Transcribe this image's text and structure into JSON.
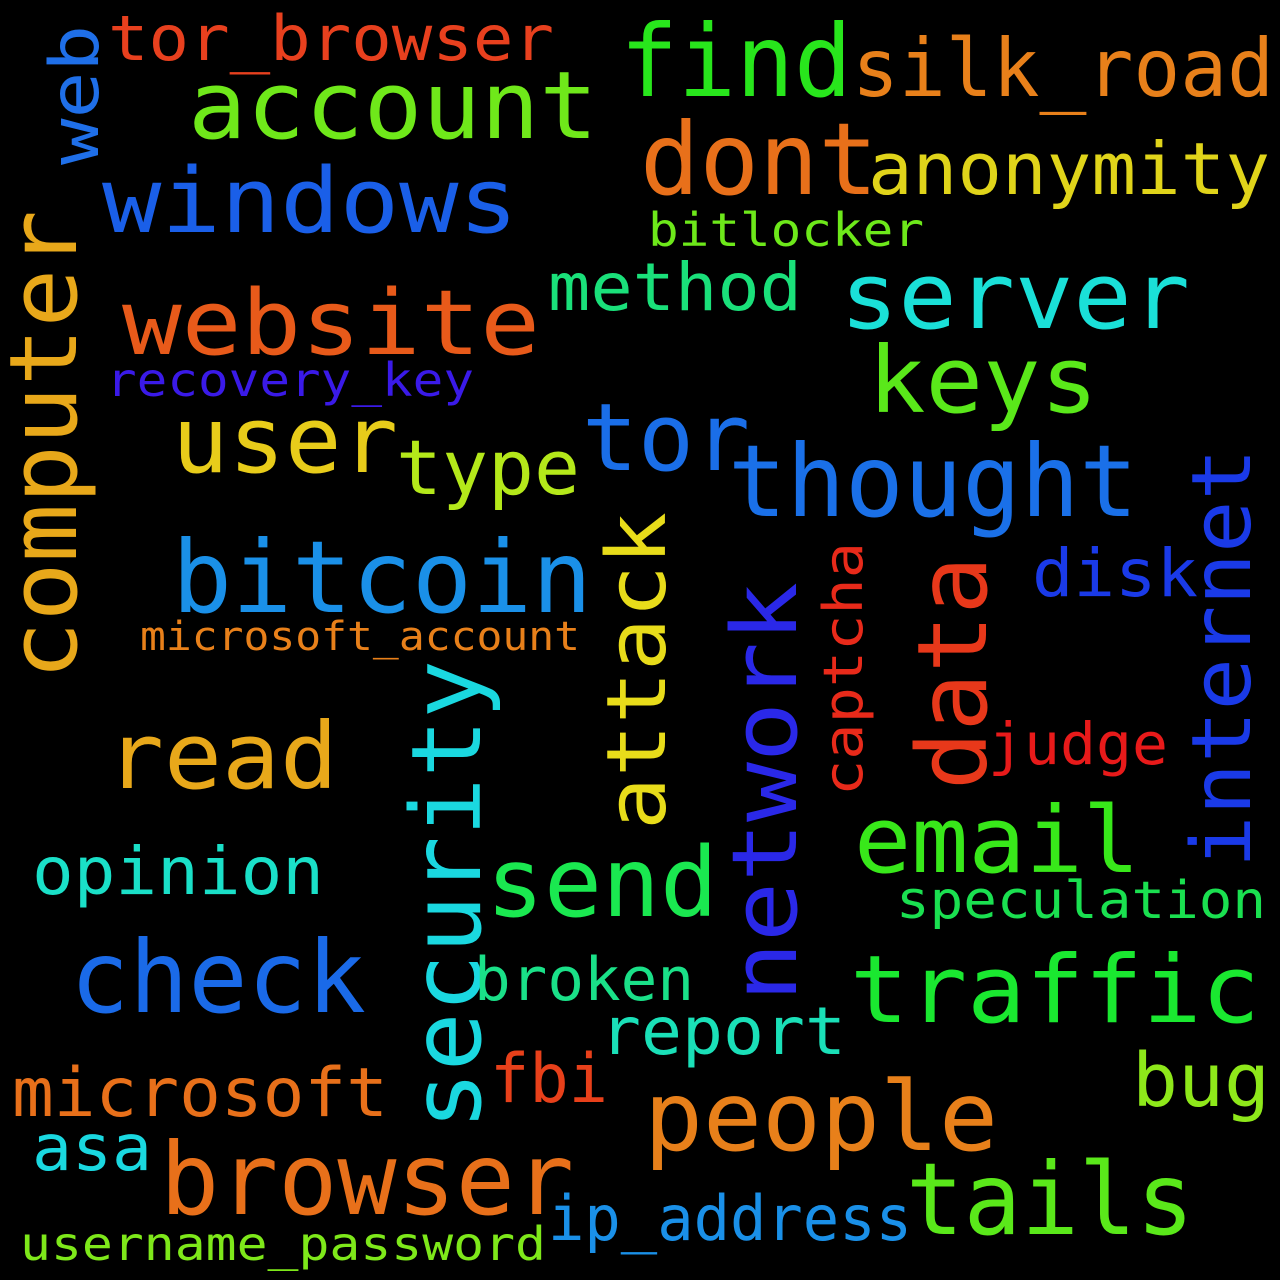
{
  "background": "#000000",
  "words": [
    {
      "text": "tor_browser",
      "color": "#e8401e"
    },
    {
      "text": "web",
      "color": "#1f6fe8"
    },
    {
      "text": "account",
      "color": "#6fe81a"
    },
    {
      "text": "find",
      "color": "#28e61c"
    },
    {
      "text": "silk_road",
      "color": "#e8801a"
    },
    {
      "text": "dont",
      "color": "#e8701a"
    },
    {
      "text": "anonymity",
      "color": "#e0d41a"
    },
    {
      "text": "windows",
      "color": "#1a5fe8"
    },
    {
      "text": "bitlocker",
      "color": "#6de81a"
    },
    {
      "text": "computer",
      "color": "#e8a81a"
    },
    {
      "text": "website",
      "color": "#e85a1a"
    },
    {
      "text": "method",
      "color": "#1ae07a"
    },
    {
      "text": "server",
      "color": "#1ae0d8"
    },
    {
      "text": "keys",
      "color": "#5ae81a"
    },
    {
      "text": "recovery_key",
      "color": "#3a1ae8"
    },
    {
      "text": "user",
      "color": "#e8cc1a"
    },
    {
      "text": "tor",
      "color": "#1a6ee8"
    },
    {
      "text": "type",
      "color": "#b4e81a"
    },
    {
      "text": "thought",
      "color": "#1a70e8"
    },
    {
      "text": "internet",
      "color": "#1a3ae8"
    },
    {
      "text": "bitcoin",
      "color": "#1a90e8"
    },
    {
      "text": "attack",
      "color": "#e8dc1a"
    },
    {
      "text": "security",
      "color": "#1ad8e0"
    },
    {
      "text": "network",
      "color": "#2a28e8"
    },
    {
      "text": "captcha",
      "color": "#e82a1a"
    },
    {
      "text": "data",
      "color": "#e8381a"
    },
    {
      "text": "disk",
      "color": "#1a3ae8"
    },
    {
      "text": "microsoft_account",
      "color": "#e8801a"
    },
    {
      "text": "judge",
      "color": "#e81a1a"
    },
    {
      "text": "read",
      "color": "#e8a81a"
    },
    {
      "text": "email",
      "color": "#38e81a"
    },
    {
      "text": "opinion",
      "color": "#1ae0c8"
    },
    {
      "text": "send",
      "color": "#1ae850"
    },
    {
      "text": "speculation",
      "color": "#1ae050"
    },
    {
      "text": "check",
      "color": "#1a6ae8"
    },
    {
      "text": "traffic",
      "color": "#1ae830"
    },
    {
      "text": "broken",
      "color": "#1ae088"
    },
    {
      "text": "report",
      "color": "#1ae0b8"
    },
    {
      "text": "bug",
      "color": "#8ee81a"
    },
    {
      "text": "microsoft",
      "color": "#e8701a"
    },
    {
      "text": "fbi",
      "color": "#e8401a"
    },
    {
      "text": "people",
      "color": "#e8801a"
    },
    {
      "text": "asa",
      "color": "#1ad8e0"
    },
    {
      "text": "browser",
      "color": "#e8701a"
    },
    {
      "text": "tails",
      "color": "#5ae81a"
    },
    {
      "text": "ip_address",
      "color": "#1a90e8"
    },
    {
      "text": "username_password",
      "color": "#7ee81a"
    }
  ]
}
